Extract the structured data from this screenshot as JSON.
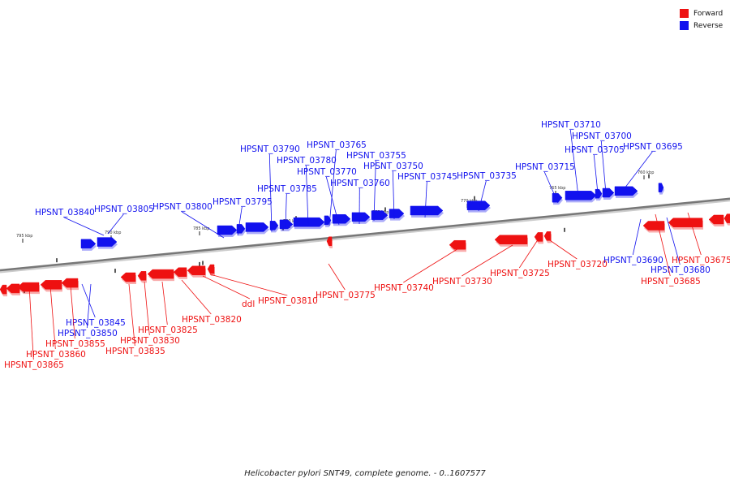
{
  "caption": "Helicobacter pylori SNT49, complete genome. - 0..1607577",
  "legend": [
    {
      "label": "Forward",
      "color": "#ee1111"
    },
    {
      "label": "Reverse",
      "color": "#1111ee"
    }
  ],
  "colors": {
    "forward": "#ee1111",
    "reverse": "#1111ee",
    "backbone": "#777777"
  },
  "ruler_labels": [
    "795 kbp",
    "790 kbp",
    "785 kbp",
    "780 kbp",
    "775 kbp",
    "770 kbp",
    "765 kbp",
    "760 kbp"
  ],
  "features": [
    {
      "id": "HPSNT_03840",
      "strand": "reverse"
    },
    {
      "id": "HPSNT_03805",
      "strand": "reverse"
    },
    {
      "id": "HPSNT_03800",
      "strand": "reverse"
    },
    {
      "id": "HPSNT_03795",
      "strand": "reverse"
    },
    {
      "id": "HPSNT_03790",
      "strand": "reverse"
    },
    {
      "id": "HPSNT_03785",
      "strand": "reverse"
    },
    {
      "id": "HPSNT_03780",
      "strand": "reverse"
    },
    {
      "id": "HPSNT_03765",
      "strand": "reverse"
    },
    {
      "id": "HPSNT_03770",
      "strand": "reverse"
    },
    {
      "id": "HPSNT_03760",
      "strand": "reverse"
    },
    {
      "id": "HPSNT_03755",
      "strand": "reverse"
    },
    {
      "id": "HPSNT_03750",
      "strand": "reverse"
    },
    {
      "id": "HPSNT_03745",
      "strand": "reverse"
    },
    {
      "id": "HPSNT_03735",
      "strand": "reverse"
    },
    {
      "id": "HPSNT_03715",
      "strand": "reverse"
    },
    {
      "id": "HPSNT_03710",
      "strand": "reverse"
    },
    {
      "id": "HPSNT_03700",
      "strand": "reverse"
    },
    {
      "id": "HPSNT_03705",
      "strand": "reverse"
    },
    {
      "id": "HPSNT_03695",
      "strand": "reverse"
    },
    {
      "id": "HPSNT_03690",
      "strand": "reverse"
    },
    {
      "id": "HPSNT_03680",
      "strand": "reverse"
    },
    {
      "id": "HPSNT_03845",
      "strand": "reverse"
    },
    {
      "id": "HPSNT_03850",
      "strand": "reverse"
    },
    {
      "id": "HPSNT_03675",
      "strand": "forward"
    },
    {
      "id": "HPSNT_03685",
      "strand": "forward"
    },
    {
      "id": "HPSNT_03720",
      "strand": "forward"
    },
    {
      "id": "HPSNT_03725",
      "strand": "forward"
    },
    {
      "id": "HPSNT_03730",
      "strand": "forward"
    },
    {
      "id": "HPSNT_03740",
      "strand": "forward"
    },
    {
      "id": "HPSNT_03775",
      "strand": "forward"
    },
    {
      "id": "HPSNT_03810",
      "strand": "forward"
    },
    {
      "id": "ddl",
      "strand": "forward"
    },
    {
      "id": "HPSNT_03820",
      "strand": "forward"
    },
    {
      "id": "HPSNT_03825",
      "strand": "forward"
    },
    {
      "id": "HPSNT_03830",
      "strand": "forward"
    },
    {
      "id": "HPSNT_03835",
      "strand": "forward"
    },
    {
      "id": "HPSNT_03855",
      "strand": "forward"
    },
    {
      "id": "HPSNT_03860",
      "strand": "forward"
    },
    {
      "id": "HPSNT_03865",
      "strand": "forward"
    }
  ]
}
